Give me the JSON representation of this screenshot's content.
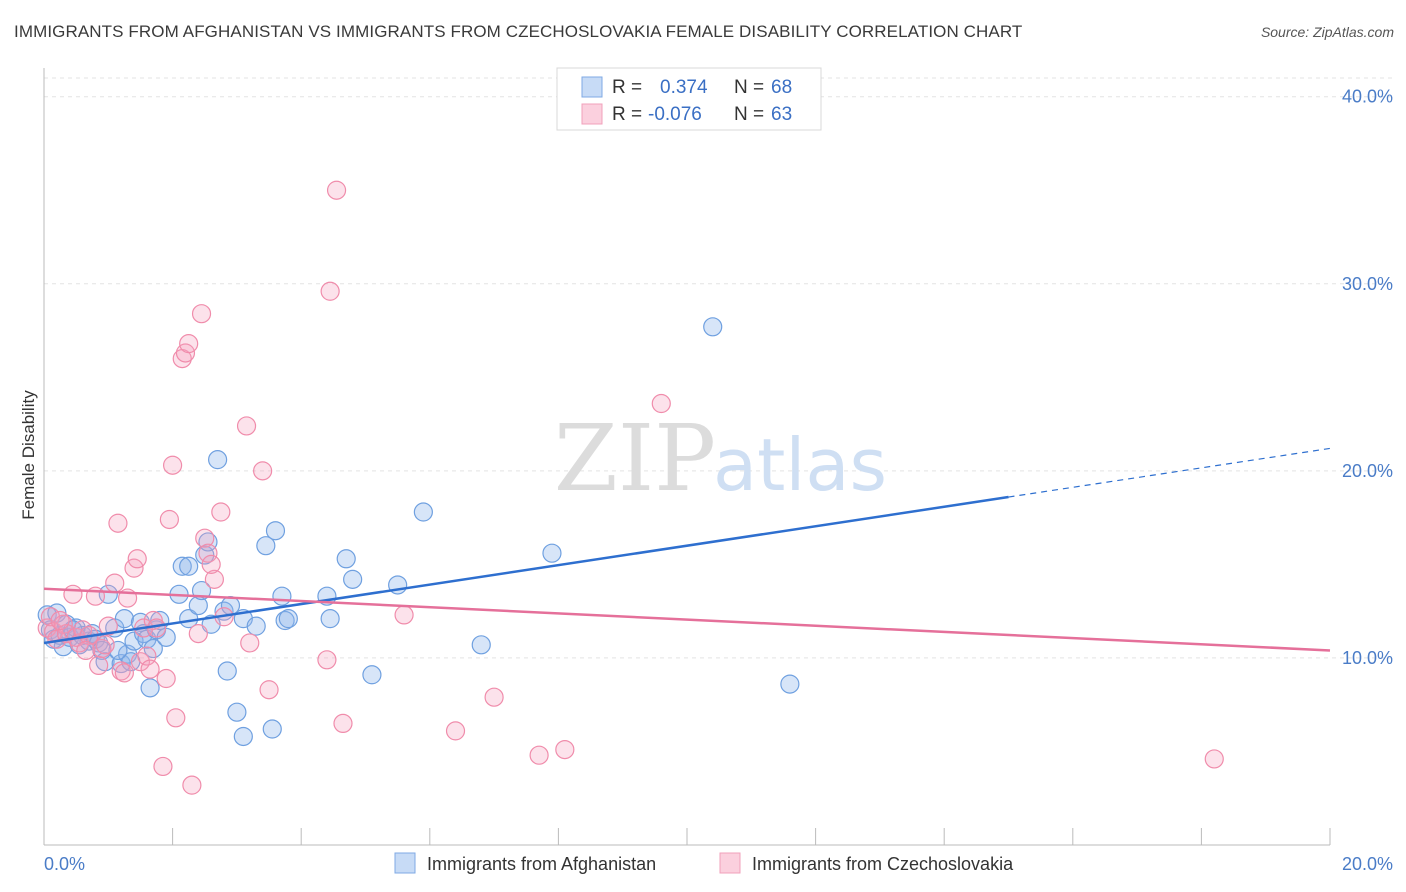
{
  "title": "IMMIGRANTS FROM AFGHANISTAN VS IMMIGRANTS FROM CZECHOSLOVAKIA FEMALE DISABILITY CORRELATION CHART",
  "source": "Source: ZipAtlas.com",
  "watermark": {
    "zip": "ZIP",
    "atlas": "atlas"
  },
  "colors": {
    "blue": "#6fa0e0",
    "blue_line": "#2e6fcf",
    "pink": "#f08cab",
    "pink_line": "#e5709a",
    "tick": "#4a7cc7"
  },
  "legend": {
    "r_label": "R =",
    "n_label": "N =",
    "rows": [
      {
        "series": "Immigrants from Afghanistan",
        "r": "0.374",
        "n": "68"
      },
      {
        "series": "Immigrants from Czechoslovakia",
        "r": "-0.076",
        "n": "63"
      }
    ]
  },
  "chart_data": {
    "type": "scatter",
    "ylabel": "Female Disability",
    "xlim": [
      0,
      20
    ],
    "ylim": [
      0,
      41
    ],
    "x_tick_labels": [
      "0.0%",
      "20.0%"
    ],
    "y_ticks": [
      10,
      20,
      30,
      40
    ],
    "y_tick_labels": [
      "10.0%",
      "20.0%",
      "30.0%",
      "40.0%"
    ],
    "series": [
      {
        "name": "Immigrants from Afghanistan",
        "color": "#6fa0e0",
        "trend": {
          "x0": 0,
          "y0": 10.8,
          "x1": 15.0,
          "y1": 18.6,
          "dash_x1": 20.0,
          "dash_y1": 21.2
        },
        "points": [
          [
            0.05,
            12.3
          ],
          [
            0.1,
            11.5
          ],
          [
            0.15,
            11.0
          ],
          [
            0.2,
            12.4
          ],
          [
            0.25,
            11.2
          ],
          [
            0.3,
            10.6
          ],
          [
            0.35,
            11.8
          ],
          [
            0.4,
            11.1
          ],
          [
            0.5,
            11.6
          ],
          [
            0.55,
            10.7
          ],
          [
            0.6,
            11.2
          ],
          [
            0.7,
            10.9
          ],
          [
            0.75,
            11.3
          ],
          [
            0.8,
            11.0
          ],
          [
            0.85,
            10.8
          ],
          [
            0.9,
            10.4
          ],
          [
            0.95,
            9.8
          ],
          [
            1.0,
            13.4
          ],
          [
            1.1,
            11.6
          ],
          [
            1.2,
            9.7
          ],
          [
            1.25,
            12.1
          ],
          [
            1.3,
            10.2
          ],
          [
            1.35,
            9.8
          ],
          [
            1.4,
            10.9
          ],
          [
            1.5,
            11.9
          ],
          [
            1.55,
            11.3
          ],
          [
            1.6,
            11.0
          ],
          [
            1.65,
            8.4
          ],
          [
            1.7,
            10.5
          ],
          [
            1.75,
            11.5
          ],
          [
            1.8,
            12.0
          ],
          [
            1.9,
            11.1
          ],
          [
            2.1,
            13.4
          ],
          [
            2.15,
            14.9
          ],
          [
            2.25,
            14.9
          ],
          [
            2.25,
            12.1
          ],
          [
            2.4,
            12.8
          ],
          [
            2.45,
            13.6
          ],
          [
            2.5,
            15.5
          ],
          [
            2.55,
            16.2
          ],
          [
            2.6,
            11.8
          ],
          [
            2.7,
            20.6
          ],
          [
            2.8,
            12.5
          ],
          [
            2.85,
            9.3
          ],
          [
            2.9,
            12.8
          ],
          [
            3.0,
            7.1
          ],
          [
            3.1,
            5.8
          ],
          [
            3.1,
            12.1
          ],
          [
            3.3,
            11.7
          ],
          [
            3.45,
            16.0
          ],
          [
            3.55,
            6.2
          ],
          [
            3.6,
            16.8
          ],
          [
            3.7,
            13.3
          ],
          [
            3.75,
            12.0
          ],
          [
            3.8,
            12.1
          ],
          [
            4.4,
            13.3
          ],
          [
            4.45,
            12.1
          ],
          [
            4.7,
            15.3
          ],
          [
            4.8,
            14.2
          ],
          [
            5.1,
            9.1
          ],
          [
            5.5,
            13.9
          ],
          [
            5.9,
            17.8
          ],
          [
            6.8,
            10.7
          ],
          [
            7.9,
            15.6
          ],
          [
            10.4,
            27.7
          ],
          [
            11.6,
            8.6
          ],
          [
            0.45,
            11.5
          ],
          [
            1.15,
            10.4
          ]
        ]
      },
      {
        "name": "Immigrants from Czechoslovakia",
        "color": "#f08cab",
        "trend": {
          "x0": 0,
          "y0": 13.7,
          "x1": 20.0,
          "y1": 10.4
        },
        "points": [
          [
            0.05,
            11.6
          ],
          [
            0.1,
            12.2
          ],
          [
            0.15,
            11.4
          ],
          [
            0.2,
            11.0
          ],
          [
            0.3,
            11.8
          ],
          [
            0.35,
            11.3
          ],
          [
            0.45,
            13.4
          ],
          [
            0.5,
            11.1
          ],
          [
            0.55,
            10.8
          ],
          [
            0.6,
            11.5
          ],
          [
            0.7,
            11.2
          ],
          [
            0.8,
            13.3
          ],
          [
            0.85,
            9.6
          ],
          [
            0.9,
            10.5
          ],
          [
            0.95,
            10.7
          ],
          [
            1.0,
            11.7
          ],
          [
            1.1,
            14.0
          ],
          [
            1.15,
            17.2
          ],
          [
            1.2,
            9.3
          ],
          [
            1.3,
            13.2
          ],
          [
            1.4,
            14.8
          ],
          [
            1.45,
            15.3
          ],
          [
            1.5,
            9.8
          ],
          [
            1.55,
            11.6
          ],
          [
            1.6,
            10.1
          ],
          [
            1.7,
            12.0
          ],
          [
            1.75,
            11.6
          ],
          [
            1.85,
            4.2
          ],
          [
            1.9,
            8.9
          ],
          [
            1.95,
            17.4
          ],
          [
            2.0,
            20.3
          ],
          [
            2.05,
            6.8
          ],
          [
            2.15,
            26.0
          ],
          [
            2.2,
            26.3
          ],
          [
            2.25,
            26.8
          ],
          [
            2.3,
            3.2
          ],
          [
            2.4,
            11.3
          ],
          [
            2.45,
            28.4
          ],
          [
            2.5,
            16.4
          ],
          [
            2.55,
            15.6
          ],
          [
            2.65,
            14.2
          ],
          [
            2.75,
            17.8
          ],
          [
            2.8,
            12.2
          ],
          [
            3.15,
            22.4
          ],
          [
            3.2,
            10.8
          ],
          [
            3.4,
            20.0
          ],
          [
            3.5,
            8.3
          ],
          [
            4.4,
            9.9
          ],
          [
            4.45,
            29.6
          ],
          [
            4.55,
            35.0
          ],
          [
            4.65,
            6.5
          ],
          [
            5.6,
            12.3
          ],
          [
            6.4,
            6.1
          ],
          [
            7.0,
            7.9
          ],
          [
            7.7,
            4.8
          ],
          [
            8.1,
            5.1
          ],
          [
            9.6,
            23.6
          ],
          [
            18.2,
            4.6
          ],
          [
            0.25,
            12.0
          ],
          [
            0.65,
            10.4
          ],
          [
            1.25,
            9.2
          ],
          [
            1.65,
            9.4
          ],
          [
            2.6,
            15.0
          ]
        ]
      }
    ]
  }
}
